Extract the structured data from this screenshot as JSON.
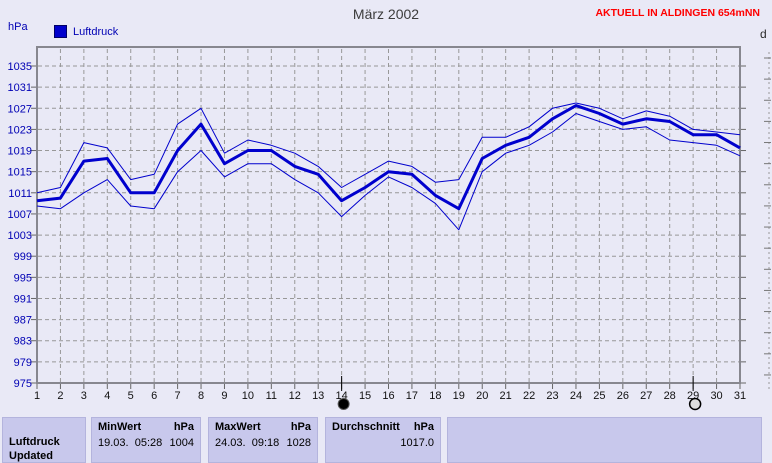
{
  "header": {
    "title": "März 2002",
    "station_label": "AKTUELL IN ALDINGEN 654mNN",
    "right_axis_label": "d"
  },
  "legend": {
    "unit_label": "hPa",
    "series_label": "Luftdruck"
  },
  "colors": {
    "line_blue": "#0000cd",
    "label_blue": "#0000b4",
    "banner_red": "#ff0000",
    "grid_gray": "#989898",
    "frame_gray": "#87878f",
    "table_bg": "#c8c8ec",
    "page_bg": "#e9e9f6"
  },
  "chart_data": {
    "type": "line",
    "title": "März 2002",
    "xlabel": "",
    "ylabel": "hPa",
    "grid": true,
    "legend_position": "top-left",
    "ylim": [
      975,
      1039
    ],
    "y_ticks": [
      975,
      979,
      983,
      987,
      991,
      995,
      999,
      1003,
      1007,
      1011,
      1015,
      1019,
      1023,
      1027,
      1031,
      1035
    ],
    "x": [
      1,
      2,
      3,
      4,
      5,
      6,
      7,
      8,
      9,
      10,
      11,
      12,
      13,
      14,
      15,
      16,
      17,
      18,
      19,
      20,
      21,
      22,
      23,
      24,
      25,
      26,
      27,
      28,
      29,
      30,
      31
    ],
    "series": [
      {
        "name": "day-max",
        "width": "thin",
        "values": [
          1011,
          1012,
          1020.5,
          1019.5,
          1013.5,
          1014.5,
          1024,
          1027,
          1018.5,
          1021,
          1020,
          1018.5,
          1016,
          1012,
          1014.5,
          1017,
          1016,
          1013,
          1013.5,
          1021.5,
          1021.5,
          1023.5,
          1027,
          1028,
          1027,
          1025,
          1026.5,
          1025.5,
          1023,
          1022.5,
          1022
        ]
      },
      {
        "name": "Luftdruck",
        "width": "thick",
        "values": [
          1009.5,
          1010,
          1017,
          1017.5,
          1011,
          1011,
          1019,
          1024,
          1016.5,
          1019,
          1019,
          1016,
          1014.5,
          1009.5,
          1012,
          1015,
          1014.5,
          1010.5,
          1008,
          1017.5,
          1020,
          1021.5,
          1025,
          1027.5,
          1026,
          1024,
          1025,
          1024.5,
          1022,
          1022,
          1019.5
        ]
      },
      {
        "name": "day-min",
        "width": "thin",
        "values": [
          1008.5,
          1008,
          1011,
          1013.5,
          1008.5,
          1008,
          1015,
          1019,
          1014,
          1016.5,
          1016.5,
          1013.5,
          1011,
          1006.5,
          1010.5,
          1014,
          1012,
          1009,
          1004,
          1015,
          1018.5,
          1020,
          1022.5,
          1026,
          1024.5,
          1023,
          1023.5,
          1021,
          1020.5,
          1020,
          1018
        ]
      }
    ],
    "annotations": [
      {
        "type": "new-moon",
        "day": 14
      },
      {
        "type": "full-moon",
        "day": 29
      }
    ]
  },
  "summary_table": {
    "row_label": "Luftdruck",
    "row_sublabel": "Updated",
    "min": {
      "header": "MinWert",
      "unit": "hPa",
      "date": "19.03.",
      "time": "05:28",
      "value": "1004"
    },
    "max": {
      "header": "MaxWert",
      "unit": "hPa",
      "date": "24.03.",
      "time": "09:18",
      "value": "1028"
    },
    "avg": {
      "header": "Durchschnitt",
      "unit": "hPa",
      "value": "1017.0"
    }
  }
}
